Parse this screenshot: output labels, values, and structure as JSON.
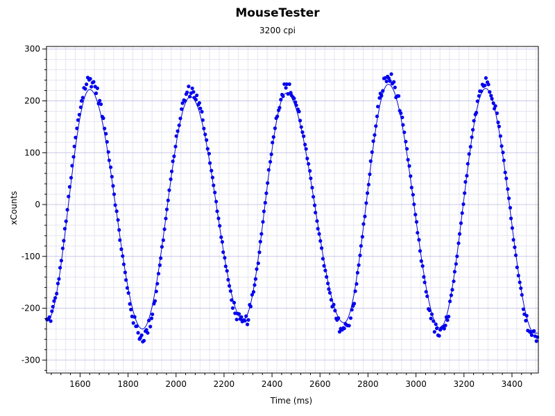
{
  "chart_data": {
    "type": "scatter",
    "title": "MouseTester",
    "subtitle": "3200 cpi",
    "xlabel": "Time (ms)",
    "ylabel": "xCounts",
    "xlim": [
      1460,
      3510
    ],
    "ylim": [
      -325,
      305
    ],
    "xticks": [
      1600,
      1800,
      2000,
      2200,
      2400,
      2600,
      2800,
      3000,
      3200,
      3400
    ],
    "yticks": [
      300,
      200,
      100,
      0,
      -100,
      -200,
      -300
    ],
    "grid": true,
    "series": [
      {
        "style": "points",
        "color": "#0000ee",
        "generated": true,
        "x_start": 1462,
        "x_end": 3508,
        "x_step": 5,
        "anchors": [
          [
            1462,
            -225
          ],
          [
            1640,
            240
          ],
          [
            1860,
            -255
          ],
          [
            2060,
            220
          ],
          [
            2280,
            -230
          ],
          [
            2460,
            225
          ],
          [
            2700,
            -240
          ],
          [
            2885,
            245
          ],
          [
            3100,
            -250
          ],
          [
            3290,
            235
          ],
          [
            3495,
            -255
          ]
        ]
      },
      {
        "style": "line",
        "color": "#0000cc",
        "anchors": [
          [
            1462,
            -225
          ],
          [
            1640,
            222
          ],
          [
            1860,
            -240
          ],
          [
            2060,
            208
          ],
          [
            2280,
            -222
          ],
          [
            2460,
            215
          ],
          [
            2700,
            -228
          ],
          [
            2885,
            232
          ],
          [
            3100,
            -238
          ],
          [
            3290,
            224
          ],
          [
            3495,
            -248
          ]
        ]
      }
    ]
  }
}
